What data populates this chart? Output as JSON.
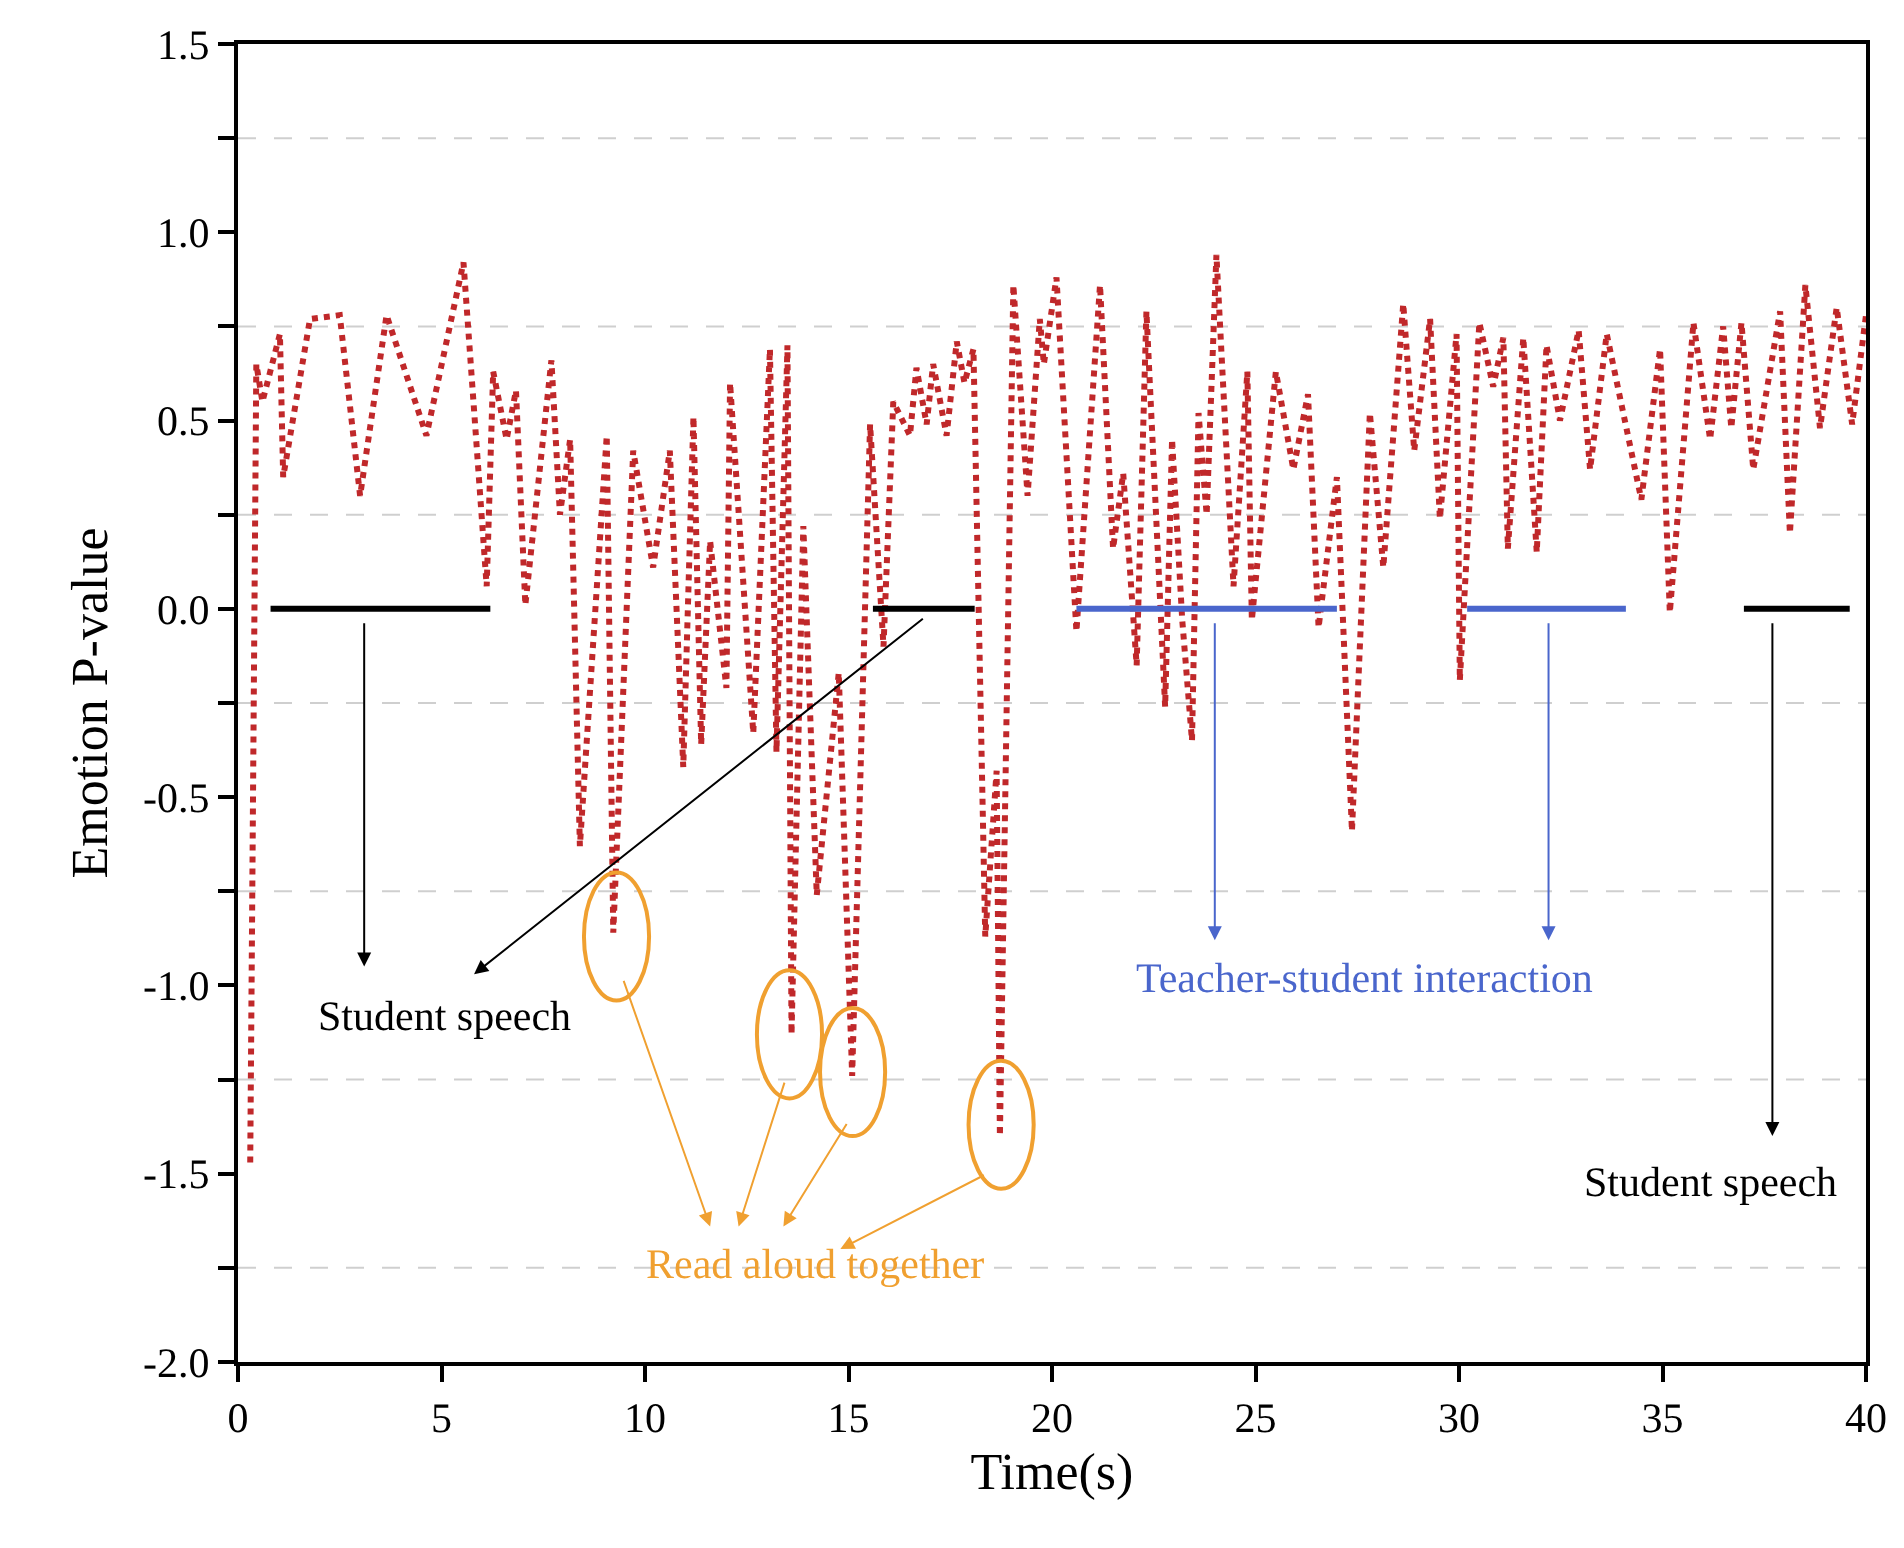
{
  "chart_data": {
    "type": "line",
    "xlabel": "Time(s)",
    "ylabel": "Emotion P-value",
    "line_style": "dotted",
    "marker": "none",
    "grid": "y",
    "xlim": [
      0,
      40
    ],
    "xticks": [
      0,
      5,
      10,
      15,
      20,
      25,
      30,
      35,
      40
    ],
    "ylim": [
      -2.0,
      1.5
    ],
    "yticks": [
      {
        "value": -2.0,
        "label": "-2.0"
      },
      {
        "value": -1.75,
        "label": null
      },
      {
        "value": -1.5,
        "label": "-1.5"
      },
      {
        "value": -1.25,
        "label": null
      },
      {
        "value": -1.0,
        "label": "-1.0"
      },
      {
        "value": -0.75,
        "label": null
      },
      {
        "value": -0.5,
        "label": "-0.5"
      },
      {
        "value": -0.25,
        "label": null
      },
      {
        "value": 0.0,
        "label": "0.0"
      },
      {
        "value": 0.25,
        "label": null
      },
      {
        "value": 0.5,
        "label": "0.5"
      },
      {
        "value": 0.75,
        "label": null
      },
      {
        "value": 1.0,
        "label": "1.0"
      },
      {
        "value": 1.25,
        "label": null
      },
      {
        "value": 1.5,
        "label": "1.5"
      }
    ],
    "series": [
      {
        "color": "#c0282a",
        "x": [
          0.3,
          0.45,
          0.6,
          1.03,
          1.11,
          1.77,
          2.5,
          3.0,
          3.65,
          4.63,
          5.54,
          6.11,
          6.27,
          6.6,
          6.83,
          7.06,
          7.7,
          7.91,
          8.16,
          8.4,
          9.06,
          9.22,
          9.71,
          10.2,
          10.61,
          10.94,
          11.19,
          11.38,
          11.6,
          12.0,
          12.09,
          12.66,
          13.07,
          13.23,
          13.5,
          13.6,
          13.89,
          14.22,
          14.76,
          15.09,
          15.53,
          15.86,
          16.1,
          16.51,
          16.67,
          16.92,
          17.08,
          17.41,
          17.66,
          17.85,
          18.07,
          18.36,
          18.64,
          18.72,
          19.05,
          19.4,
          19.7,
          19.8,
          20.11,
          20.6,
          21.18,
          21.5,
          21.75,
          22.08,
          22.32,
          22.78,
          22.95,
          23.2,
          23.44,
          23.6,
          23.8,
          24.04,
          24.46,
          24.8,
          24.91,
          25.5,
          25.93,
          26.29,
          26.55,
          27.0,
          27.37,
          27.81,
          28.14,
          28.63,
          28.9,
          29.29,
          29.53,
          29.94,
          30.02,
          30.5,
          30.84,
          31.09,
          31.2,
          31.58,
          31.91,
          32.15,
          32.48,
          32.94,
          33.22,
          33.63,
          34.48,
          34.94,
          35.18,
          35.76,
          36.17,
          36.49,
          36.69,
          36.94,
          37.23,
          37.89,
          38.13,
          38.51,
          38.87,
          39.28,
          39.66,
          40
        ],
        "values": [
          -1.47,
          0.65,
          0.55,
          0.73,
          0.35,
          0.77,
          0.78,
          0.3,
          0.78,
          0.46,
          0.92,
          0.06,
          0.63,
          0.45,
          0.58,
          0.01,
          0.66,
          0.25,
          0.45,
          -0.63,
          0.46,
          -0.86,
          0.42,
          0.11,
          0.42,
          -0.42,
          0.51,
          -0.36,
          0.18,
          -0.21,
          0.6,
          -0.33,
          0.69,
          -0.38,
          0.7,
          -1.13,
          0.22,
          -0.76,
          -0.17,
          -1.24,
          0.49,
          -0.1,
          0.55,
          0.46,
          0.64,
          0.49,
          0.65,
          0.46,
          0.71,
          0.6,
          0.69,
          -0.87,
          -0.43,
          -1.4,
          0.86,
          0.3,
          0.77,
          0.65,
          0.88,
          -0.06,
          0.86,
          0.16,
          0.36,
          -0.15,
          0.79,
          -0.26,
          0.45,
          -0.03,
          -0.35,
          0.52,
          0.25,
          0.94,
          0.06,
          0.63,
          -0.03,
          0.63,
          0.37,
          0.57,
          -0.05,
          0.35,
          -0.59,
          0.52,
          0.11,
          0.81,
          0.42,
          0.77,
          0.24,
          0.73,
          -0.19,
          0.76,
          0.59,
          0.72,
          0.16,
          0.72,
          0.15,
          0.7,
          0.5,
          0.74,
          0.37,
          0.73,
          0.29,
          0.69,
          -0.01,
          0.76,
          0.45,
          0.75,
          0.48,
          0.76,
          0.37,
          0.79,
          0.2,
          0.86,
          0.48,
          0.8,
          0.49,
          0.78
        ]
      },
      {
        "color": "#000000",
        "line_style": "solid",
        "x": [
          0.8,
          6.2,
          6.3,
          15.6,
          18.1,
          18.2,
          37.0,
          39.6
        ],
        "values": [
          0,
          0,
          null,
          0,
          0,
          null,
          0,
          0
        ]
      },
      {
        "color": "#4a66cc",
        "line_style": "solid",
        "x": [
          20.6,
          27.0,
          27.1,
          30.2,
          34.1
        ],
        "values": [
          0,
          0,
          null,
          0,
          0
        ]
      }
    ],
    "annotations": [
      "Student speech",
      "Teacher-student interaction",
      "Read aloud together",
      "Student speech"
    ]
  }
}
